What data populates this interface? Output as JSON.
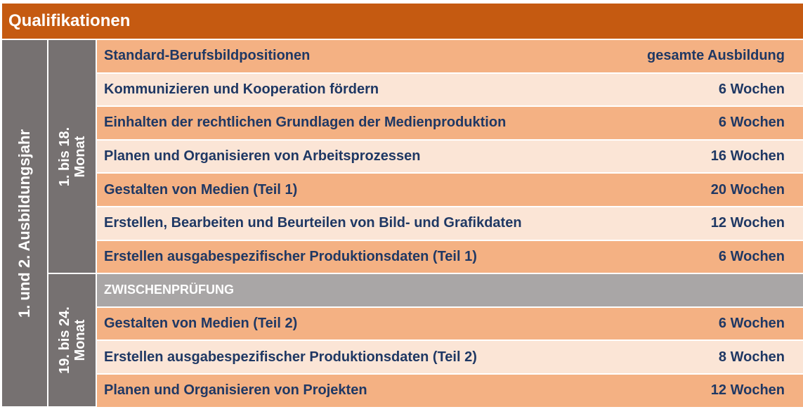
{
  "title": "Qualifikationen",
  "year_label": "1. und 2. Ausbildungsjahr",
  "period1_label": "1. bis 18. Monat",
  "period2_label": "19. bis 24. Monat",
  "rows": [
    {
      "label": "Standard-Berufsbildpositionen",
      "duration": "gesamte Ausbildung"
    },
    {
      "label": "Kommunizieren und Kooperation fördern",
      "duration": "6 Wochen"
    },
    {
      "label": "Einhalten der rechtlichen Grundlagen der Medienproduktion",
      "duration": "6 Wochen"
    },
    {
      "label": "Planen und Organisieren von Arbeitsprozessen",
      "duration": "16 Wochen"
    },
    {
      "label": "Gestalten von Medien (Teil 1)",
      "duration": "20 Wochen"
    },
    {
      "label": "Erstellen, Bearbeiten und Beurteilen von Bild- und Grafikdaten",
      "duration": "12 Wochen"
    },
    {
      "label": "Erstellen ausgabespezifischer Produktionsdaten (Teil 1)",
      "duration": "6 Wochen"
    },
    {
      "label": "ZWISCHENPRÜFUNG",
      "duration": ""
    },
    {
      "label": "Gestalten von Medien (Teil 2)",
      "duration": "6 Wochen"
    },
    {
      "label": "Erstellen ausgabespezifischer Produktionsdaten (Teil 2)",
      "duration": "8 Wochen"
    },
    {
      "label": "Planen und Organisieren von Projekten",
      "duration": "12 Wochen"
    }
  ]
}
